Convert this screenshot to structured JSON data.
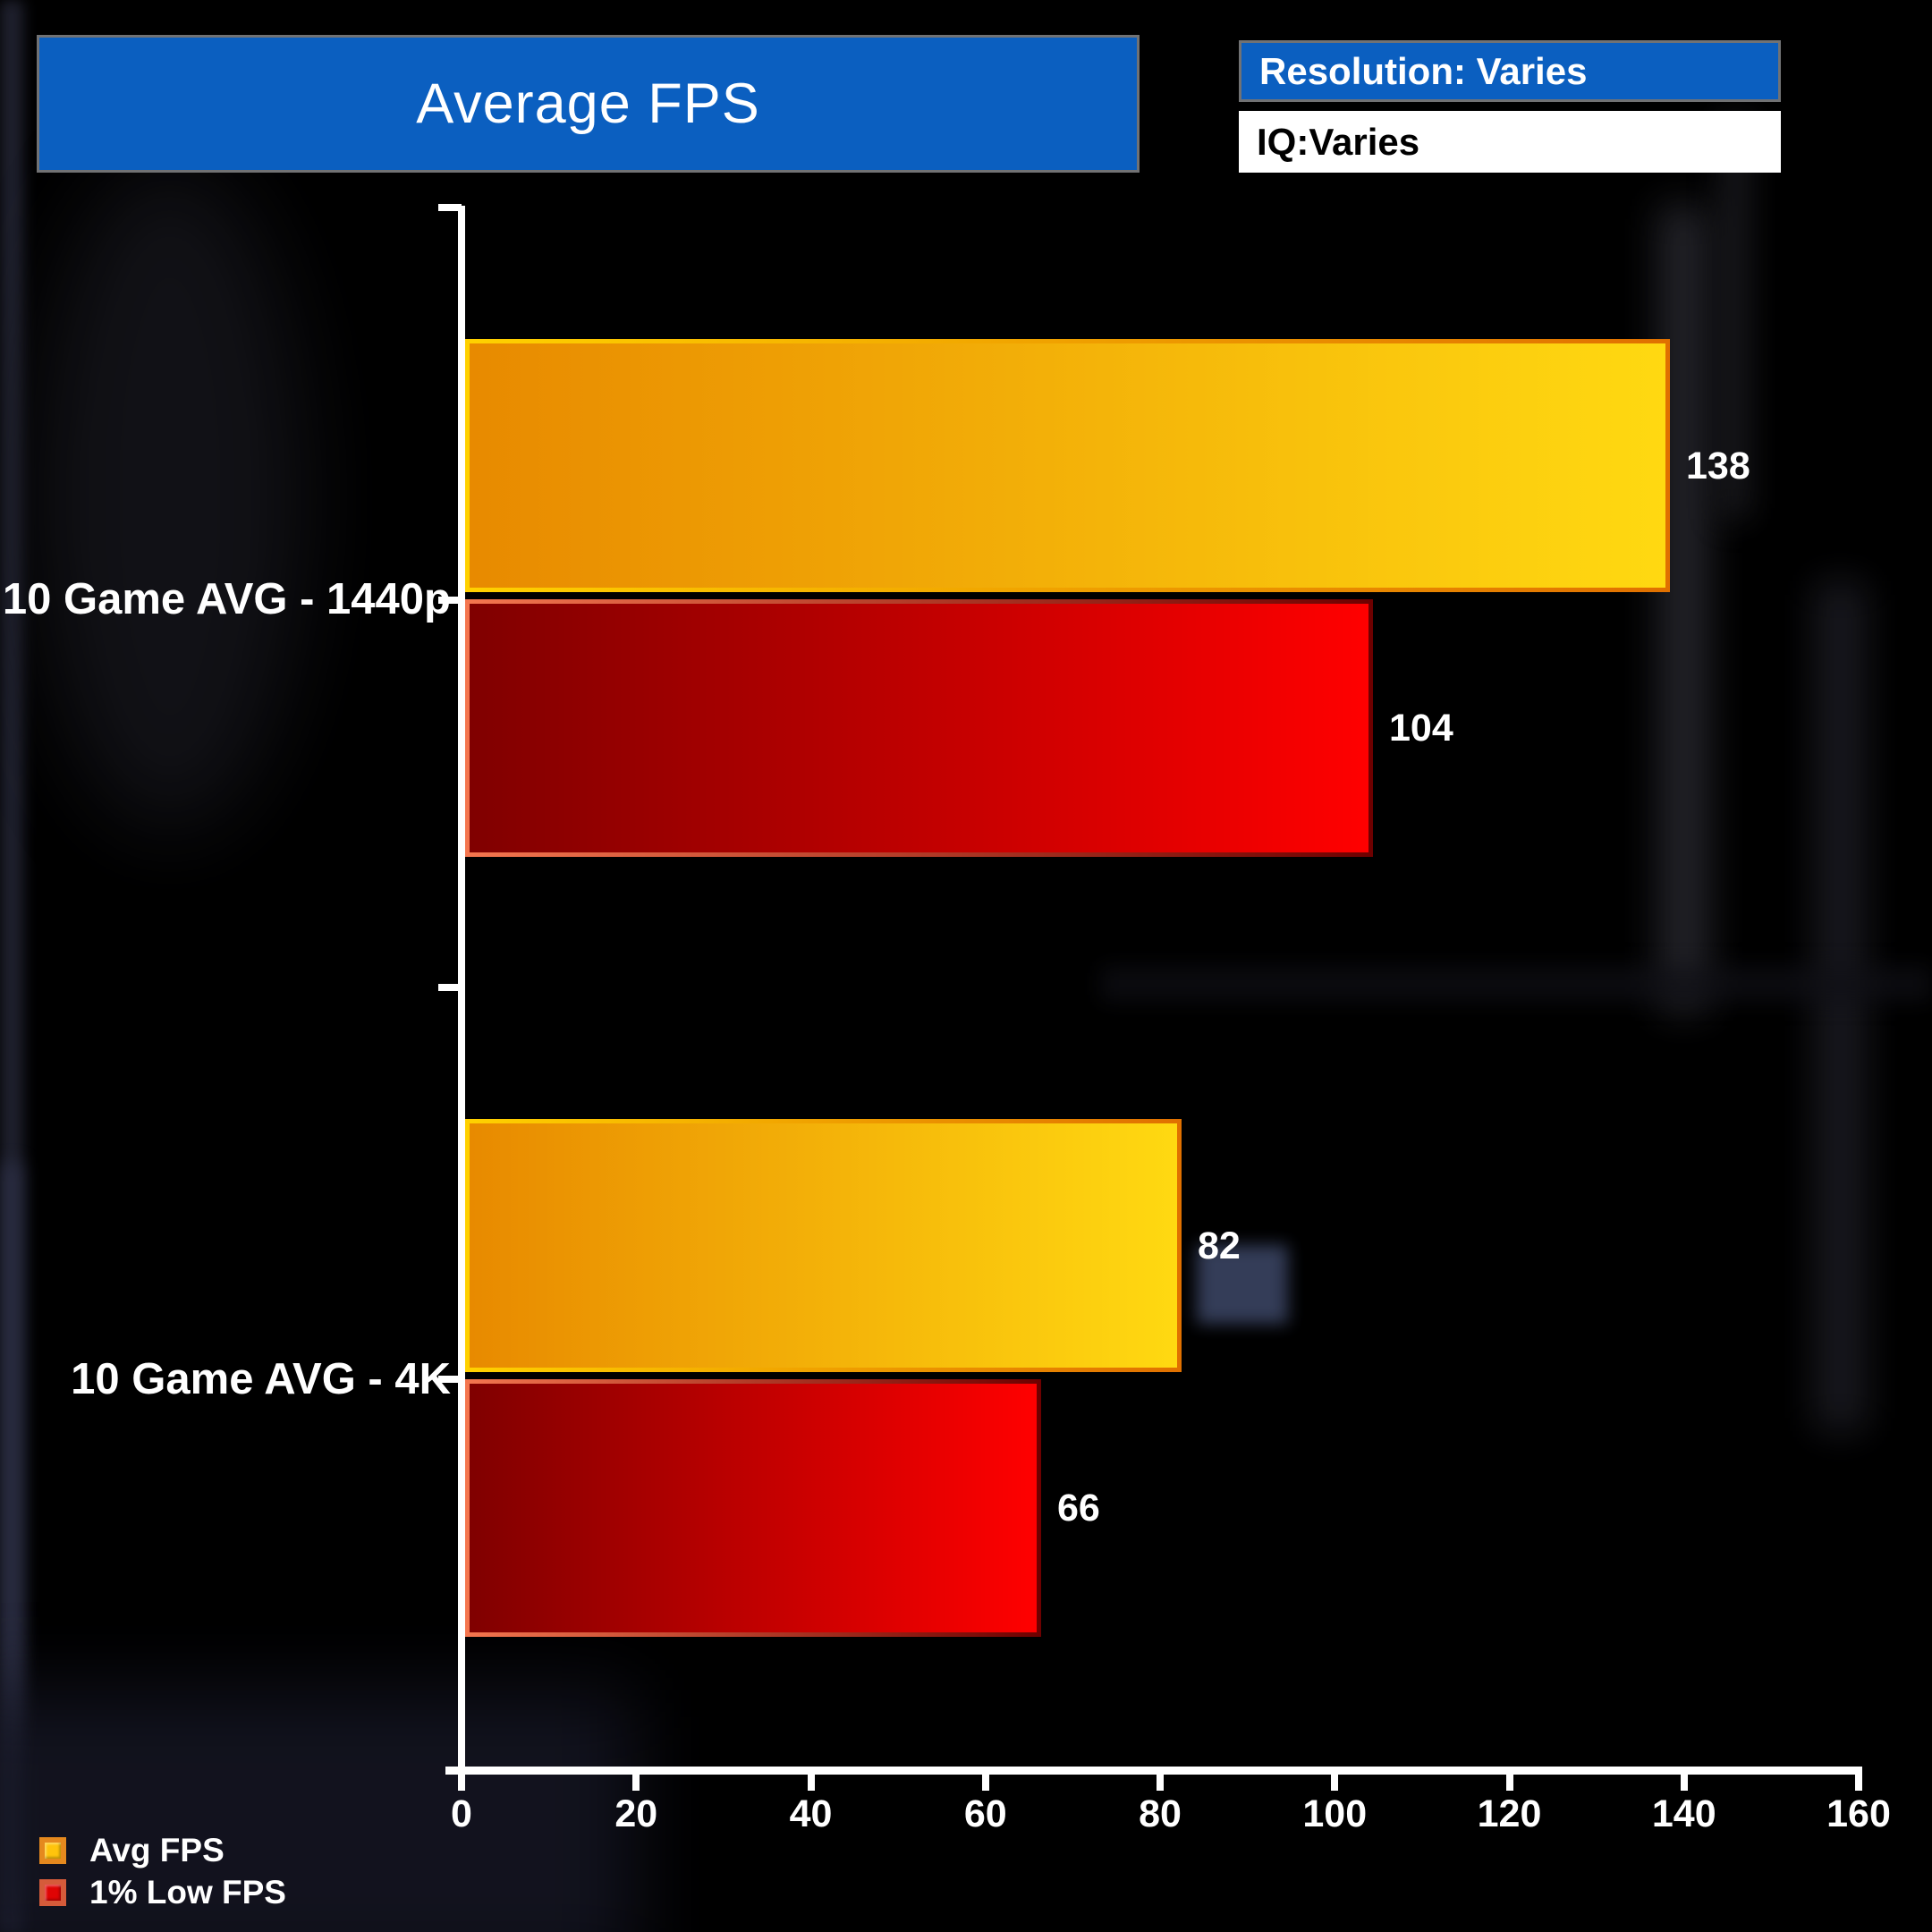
{
  "header": {
    "title": "Average FPS",
    "resolution_label": "Resolution: Varies",
    "iq_label": "IQ:Varies"
  },
  "colors": {
    "accent_blue": "#0B5FC0",
    "box_border": "#717274",
    "axis_color": "#FFFFFF",
    "text_white": "#FFFFFF",
    "avg_fill_from": "#E88A00",
    "avg_fill_to": "#FFD911",
    "avg_border_from": "#FFD100",
    "avg_border_to": "#E07000",
    "low_fill_from": "#800000",
    "low_fill_to": "#FF0000",
    "low_border_from": "#F4764F",
    "low_border_to": "#6E0000",
    "legend_avg_fill": "#FFC40C",
    "legend_avg_border": "#E5891E",
    "legend_low_fill": "#E00404",
    "legend_low_border": "#D55B3A"
  },
  "chart_data": {
    "type": "bar",
    "orientation": "horizontal",
    "title": "Average FPS",
    "categories": [
      "10 Game AVG - 1440p",
      "10 Game AVG - 4K"
    ],
    "series": [
      {
        "name": "Avg FPS",
        "values": [
          138,
          82
        ]
      },
      {
        "name": "1% Low FPS",
        "values": [
          104,
          66
        ]
      }
    ],
    "xlabel": "",
    "ylabel": "",
    "xlim": [
      0,
      160
    ],
    "x_ticks": [
      0,
      20,
      40,
      60,
      80,
      100,
      120,
      140,
      160
    ],
    "grid": false,
    "legend_position": "bottom-left",
    "value_labels_shown": true
  },
  "legend": {
    "items": [
      {
        "label": "Avg FPS"
      },
      {
        "label": "1% Low FPS"
      }
    ]
  }
}
